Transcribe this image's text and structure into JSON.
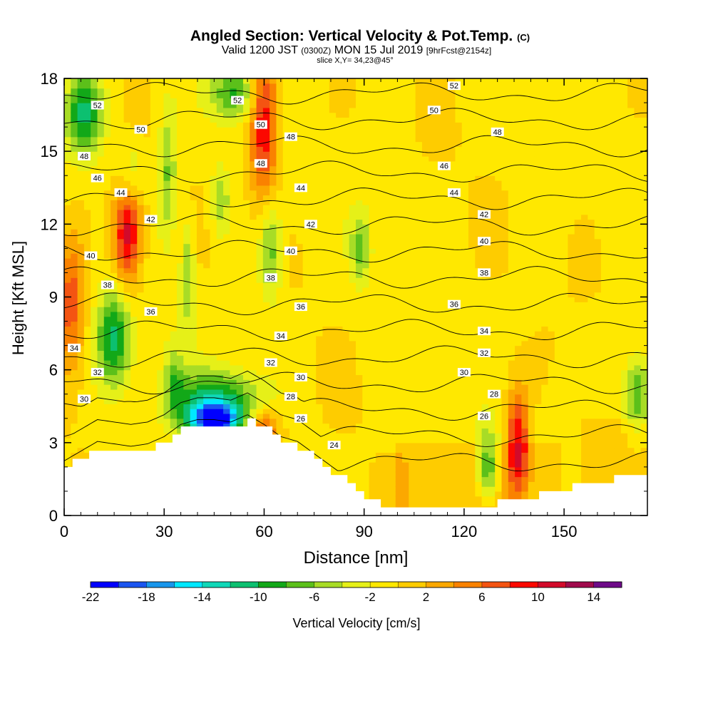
{
  "title": {
    "main": "Angled Section: Vertical Velocity & Pot.Temp.",
    "main_suffix": "(C)",
    "valid_prefix": "Valid 1200 JST",
    "valid_utc": "(0300Z)",
    "valid_date": "MON 15 Jul 2019",
    "forecast": "[9hrFcst@2154z]",
    "slice": "slice X,Y= 34,23@45°"
  },
  "chart_data": {
    "type": "heatmap",
    "xlabel": "Distance [nm]",
    "ylabel": "Height [Kft MSL]",
    "xlim": [
      0,
      175
    ],
    "ylim": [
      0,
      18
    ],
    "x_ticks": [
      0,
      30,
      60,
      90,
      120,
      150
    ],
    "y_ticks": [
      0,
      3,
      6,
      9,
      12,
      15,
      18
    ],
    "colorbar": {
      "label": "Vertical Velocity [cm/s]",
      "tick_labels": [
        -22,
        -18,
        -14,
        -10,
        -6,
        -2,
        2,
        6,
        10,
        14
      ],
      "bins": [
        -22,
        -20,
        -18,
        -16,
        -14,
        -12,
        -10,
        -8,
        -6,
        -4,
        -2,
        0,
        2,
        4,
        6,
        8,
        10,
        12,
        14,
        16
      ],
      "colors": [
        "#0000ff",
        "#1a55f0",
        "#1896ec",
        "#00e8ff",
        "#10d8b8",
        "#0cc070",
        "#12a818",
        "#5cc01a",
        "#a8dc26",
        "#e6f018",
        "#ffe800",
        "#fecc00",
        "#fca800",
        "#fa8200",
        "#f45412",
        "#fc0800",
        "#d20a2a",
        "#a00a4c",
        "#6e0a88"
      ]
    },
    "theta_contours": [
      24,
      26,
      28,
      30,
      32,
      34,
      36,
      38,
      40,
      42,
      44,
      46,
      48,
      50,
      52
    ],
    "terrain_height_kft": {
      "x": [
        0,
        5,
        10,
        15,
        20,
        25,
        30,
        35,
        40,
        45,
        50,
        55,
        60,
        65,
        70,
        75,
        80,
        85,
        90,
        95,
        100,
        110,
        120,
        130,
        140,
        150,
        160,
        170,
        175
      ],
      "y": [
        2.0,
        2.4,
        2.8,
        2.7,
        2.6,
        2.7,
        3.0,
        3.5,
        3.7,
        3.7,
        3.6,
        3.9,
        3.5,
        3.0,
        2.8,
        2.3,
        1.8,
        1.3,
        0.8,
        0.4,
        0.3,
        0.3,
        0.3,
        0.5,
        0.8,
        1.1,
        1.4,
        1.6,
        1.7
      ]
    },
    "contour_labels": [
      {
        "value": 52,
        "x": 10,
        "y": 16.9
      },
      {
        "value": 52,
        "x": 52,
        "y": 17.1
      },
      {
        "value": 52,
        "x": 117,
        "y": 17.7
      },
      {
        "value": 50,
        "x": 23,
        "y": 15.9
      },
      {
        "value": 50,
        "x": 59,
        "y": 16.1
      },
      {
        "value": 50,
        "x": 111,
        "y": 16.7
      },
      {
        "value": 48,
        "x": 6,
        "y": 14.8
      },
      {
        "value": 48,
        "x": 68,
        "y": 15.6
      },
      {
        "value": 48,
        "x": 130,
        "y": 15.8
      },
      {
        "value": 48,
        "x": 59,
        "y": 14.5
      },
      {
        "value": 46,
        "x": 10,
        "y": 13.9
      },
      {
        "value": 46,
        "x": 114,
        "y": 14.4
      },
      {
        "value": 44,
        "x": 17,
        "y": 13.3
      },
      {
        "value": 44,
        "x": 71,
        "y": 13.5
      },
      {
        "value": 44,
        "x": 117,
        "y": 13.3
      },
      {
        "value": 42,
        "x": 26,
        "y": 12.2
      },
      {
        "value": 42,
        "x": 74,
        "y": 12.0
      },
      {
        "value": 42,
        "x": 126,
        "y": 12.4
      },
      {
        "value": 40,
        "x": 8,
        "y": 10.7
      },
      {
        "value": 40,
        "x": 68,
        "y": 10.9
      },
      {
        "value": 40,
        "x": 126,
        "y": 11.3
      },
      {
        "value": 38,
        "x": 13,
        "y": 9.5
      },
      {
        "value": 38,
        "x": 62,
        "y": 9.8
      },
      {
        "value": 38,
        "x": 126,
        "y": 10.0
      },
      {
        "value": 36,
        "x": 26,
        "y": 8.4
      },
      {
        "value": 36,
        "x": 71,
        "y": 8.6
      },
      {
        "value": 36,
        "x": 117,
        "y": 8.7
      },
      {
        "value": 34,
        "x": 3,
        "y": 6.9
      },
      {
        "value": 34,
        "x": 65,
        "y": 7.4
      },
      {
        "value": 34,
        "x": 126,
        "y": 7.6
      },
      {
        "value": 32,
        "x": 10,
        "y": 5.9
      },
      {
        "value": 32,
        "x": 62,
        "y": 6.3
      },
      {
        "value": 32,
        "x": 126,
        "y": 6.7
      },
      {
        "value": 30,
        "x": 6,
        "y": 4.8
      },
      {
        "value": 30,
        "x": 71,
        "y": 5.7
      },
      {
        "value": 30,
        "x": 120,
        "y": 5.9
      },
      {
        "value": 28,
        "x": 68,
        "y": 4.9
      },
      {
        "value": 28,
        "x": 129,
        "y": 5.0
      },
      {
        "value": 26,
        "x": 71,
        "y": 4.0
      },
      {
        "value": 26,
        "x": 126,
        "y": 4.1
      },
      {
        "value": 24,
        "x": 81,
        "y": 2.9
      }
    ],
    "velocity_features": [
      {
        "x": 19,
        "y": 11.6,
        "value": 12,
        "sx": 3,
        "sy": 1.5
      },
      {
        "x": 60,
        "y": 16.2,
        "value": 11,
        "sx": 3,
        "sy": 2.3
      },
      {
        "x": 136,
        "y": 3.0,
        "value": 11,
        "sx": 2.5,
        "sy": 1.6
      },
      {
        "x": 2,
        "y": 8.8,
        "value": 8,
        "sx": 3,
        "sy": 2.0
      },
      {
        "x": 60,
        "y": 3.6,
        "value": 8,
        "sx": 3.5,
        "sy": 0.6
      },
      {
        "x": 45,
        "y": 3.9,
        "value": -18,
        "sx": 5,
        "sy": 0.5
      },
      {
        "x": 46,
        "y": 4.7,
        "value": -10,
        "sx": 9,
        "sy": 0.9
      },
      {
        "x": 15,
        "y": 7.3,
        "value": -10,
        "sx": 3.5,
        "sy": 1.4
      },
      {
        "x": 6,
        "y": 16.6,
        "value": -10,
        "sx": 4,
        "sy": 1.2
      },
      {
        "x": 51,
        "y": 17.4,
        "value": -8,
        "sx": 5,
        "sy": 0.8
      },
      {
        "x": 127,
        "y": 2.0,
        "value": -9,
        "sx": 2.5,
        "sy": 1.0
      },
      {
        "x": 172,
        "y": 5.0,
        "value": -8,
        "sx": 3,
        "sy": 1.2
      },
      {
        "x": 62,
        "y": 11.0,
        "value": -7,
        "sx": 2.5,
        "sy": 1.5
      },
      {
        "x": 37,
        "y": 10.0,
        "value": -6,
        "sx": 1.5,
        "sy": 1.5
      },
      {
        "x": 31,
        "y": 14.0,
        "value": -6,
        "sx": 2,
        "sy": 2.0
      },
      {
        "x": 89,
        "y": 11.0,
        "value": -6,
        "sx": 2,
        "sy": 1.0
      },
      {
        "x": 47,
        "y": 13.0,
        "value": -5,
        "sx": 2,
        "sy": 1.0
      },
      {
        "x": 33,
        "y": 5.5,
        "value": -5,
        "sx": 2,
        "sy": 1.0
      },
      {
        "x": 20,
        "y": 14.2,
        "value": -4,
        "sx": 3,
        "sy": 1.0
      }
    ]
  }
}
